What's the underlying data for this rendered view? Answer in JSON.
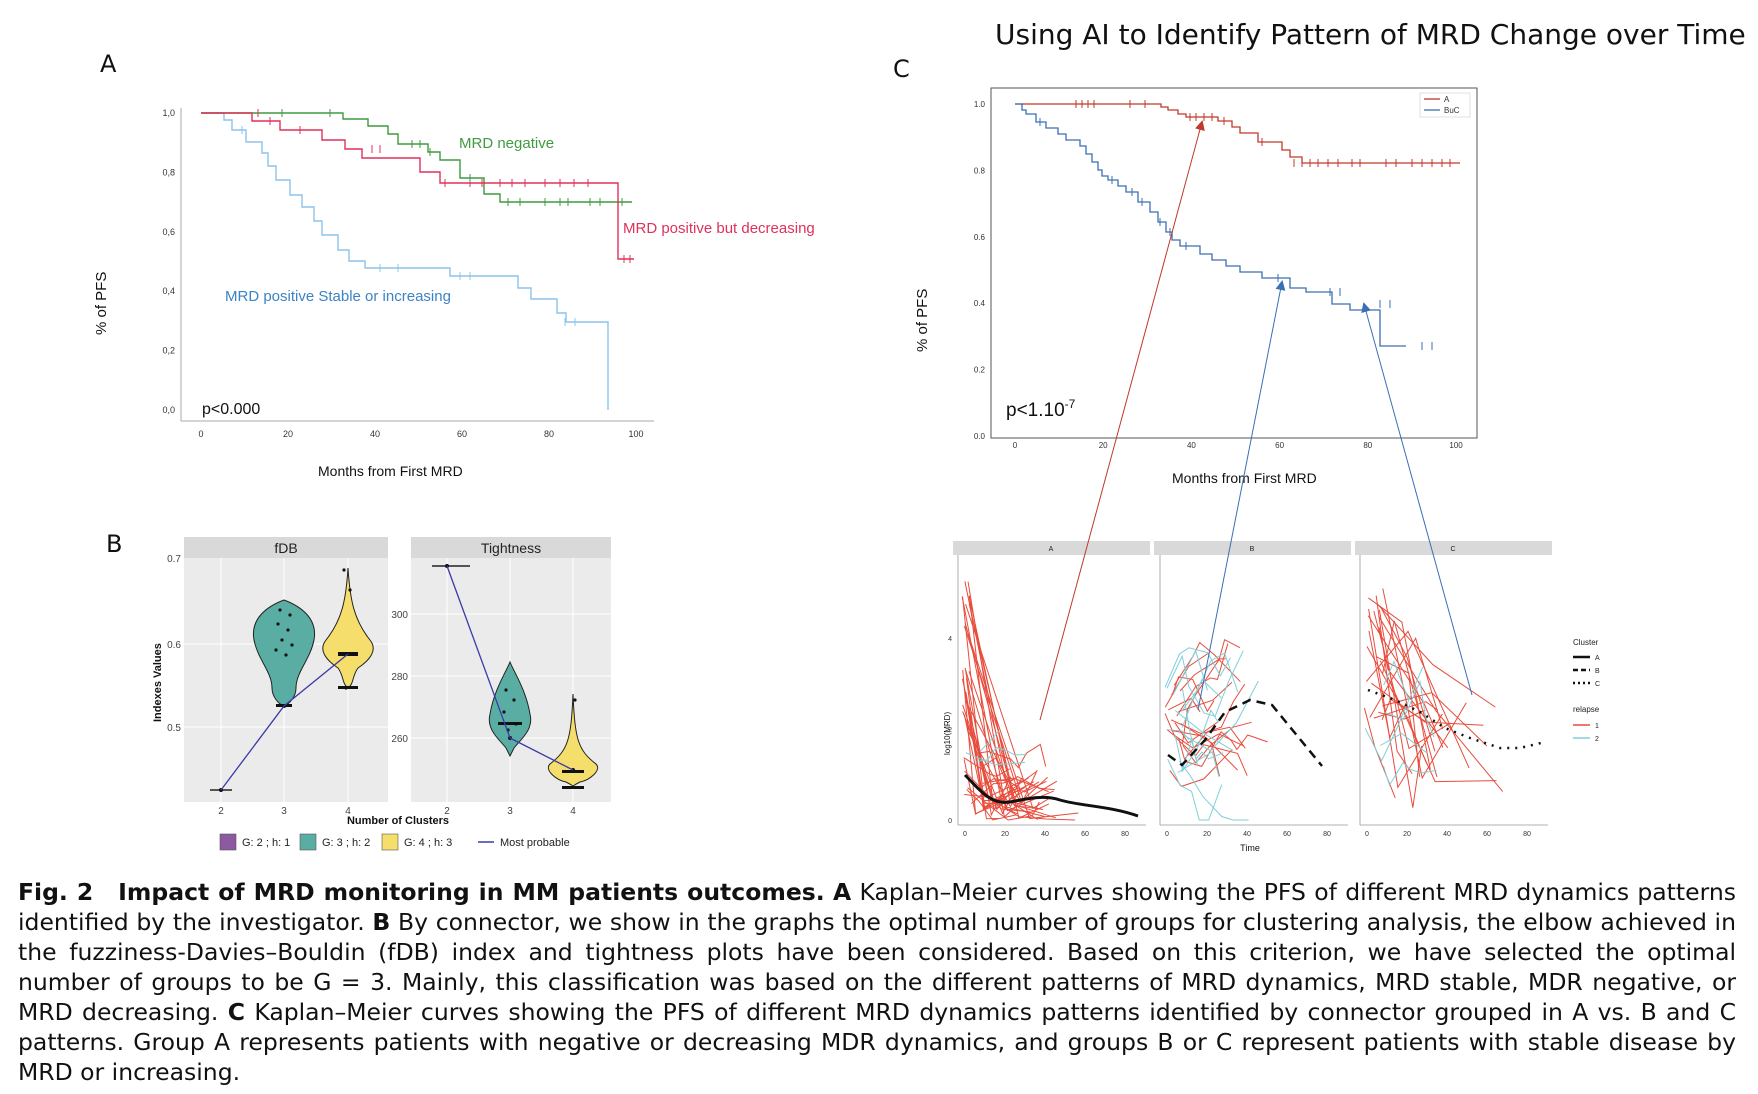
{
  "panels": {
    "A": {
      "letter": "A",
      "ylabel": "% of PFS",
      "xlabel": "Months from First MRD",
      "pvalue": "p<0.000",
      "y_ticks": [
        "1,0",
        "0,8",
        "0,6",
        "0,4",
        "0,2",
        "0,0"
      ],
      "x_ticks": [
        "0",
        "20",
        "40",
        "60",
        "80",
        "100"
      ],
      "labels": {
        "negative": "MRD negative",
        "decreasing": "MRD positive but decreasing",
        "stable": "MRD positive Stable or increasing"
      },
      "colors": {
        "negative": "#3f9b3f",
        "decreasing": "#e0315a",
        "stable": "#8cc4ea"
      }
    },
    "B": {
      "letter": "B",
      "facet_left": "fDB",
      "facet_right": "Tightness",
      "ylabel": "Indexes Values",
      "xlabel": "Number of Clusters",
      "left_y_ticks": [
        "0.7",
        "0.6",
        "0.5"
      ],
      "right_y_ticks": [
        "300",
        "280",
        "260"
      ],
      "x_ticks": [
        "2",
        "3",
        "4"
      ],
      "legend": [
        {
          "label": "G: 2 ; h: 1",
          "color": "#8b5aa0"
        },
        {
          "label": "G: 3 ; h: 2",
          "color": "#5aada2"
        },
        {
          "label": "G: 4 ; h: 3",
          "color": "#f5de6b"
        },
        {
          "label": "Most probable",
          "color": "#3a3aa8"
        }
      ]
    },
    "C": {
      "letter": "C",
      "title": "Using AI to Identify Pattern of MRD Change over Time",
      "ylabel": "% of PFS",
      "xlabel": "Months from First MRD",
      "pvalue": "p<1.10",
      "pvalue_exp": "-7",
      "y_ticks": [
        "1.0",
        "0.8",
        "0.6",
        "0.4",
        "0.2",
        "0.0"
      ],
      "x_ticks": [
        "0",
        "20",
        "40",
        "60",
        "80",
        "100"
      ],
      "legend": [
        {
          "label": "A",
          "color": "#c0392b"
        },
        {
          "label": "BuC",
          "color": "#3a6fb5"
        }
      ],
      "facets": [
        "A",
        "B",
        "C"
      ],
      "traj_ylabel": "log10(MRD)",
      "traj_xlabel": "Time",
      "traj_y_ticks": [
        "4",
        "2",
        "0"
      ],
      "traj_x_ticks": [
        "0",
        "20",
        "40",
        "60",
        "80"
      ],
      "cluster_legend_title": "Cluster",
      "cluster_legend": [
        "A",
        "B",
        "C"
      ],
      "relapse_legend_title": "relapse",
      "relapse_legend": [
        {
          "label": "1",
          "color": "#e74c3c"
        },
        {
          "label": "2",
          "color": "#7fcfd9"
        }
      ]
    }
  },
  "caption": {
    "figno": "Fig. 2",
    "title": "Impact of MRD monitoring in MM patients outcomes.",
    "a_letter": "A",
    "a_text": "Kaplan–Meier curves showing the PFS of different MRD dynamics patterns identified by the investigator.",
    "b_letter": "B",
    "b_text": "By connector, we show in the graphs the optimal number of groups for clustering analysis, the elbow achieved in the fuzziness-Davies–Bouldin (fDB) index and tightness plots have been considered. Based on this criterion, we have selected the optimal number of groups to be G = 3. Mainly, this classification was based on the different patterns of MRD dynamics, MRD stable, MDR negative, or MRD decreasing.",
    "c_letter": "C",
    "c_text": "Kaplan–Meier curves showing the PFS of different MRD dynamics patterns identified by connector grouped in A vs. B and C patterns. Group A represents patients with negative or decreasing MDR dynamics, and groups B or C represent patients with stable disease by MRD or increasing."
  }
}
